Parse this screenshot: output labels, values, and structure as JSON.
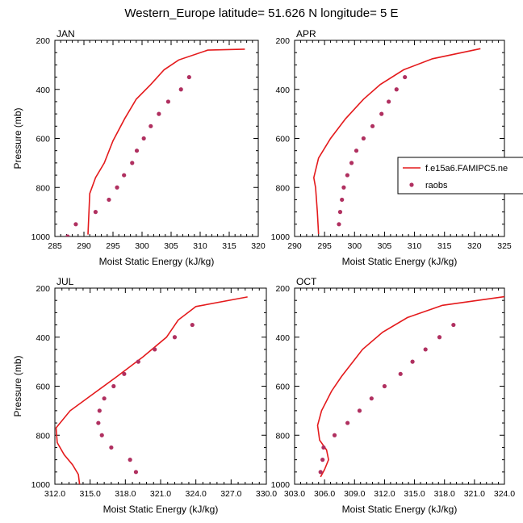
{
  "title": "Western_Europe  latitude= 51.626 N longitude= 5 E",
  "legend": {
    "entries": [
      {
        "label": "f.e15a6.FAMIPC5.ne",
        "kind": "line",
        "color": "#e41a1c"
      },
      {
        "label": "raobs",
        "kind": "marker",
        "color": "#b03060"
      }
    ],
    "placement": "right of APR panel"
  },
  "colors": {
    "model_line": "#e41a1c",
    "raobs_marker": "#b03060"
  },
  "chart_data": [
    {
      "type": "line",
      "panel_label": "JAN",
      "xlabel": "Moist Static Energy (kJ/kg)",
      "ylabel": "Pressure (mb)",
      "xlim": [
        285,
        320
      ],
      "ylim": [
        1000,
        200
      ],
      "y_inverted": true,
      "xticks": [
        285,
        290,
        295,
        300,
        305,
        310,
        315,
        320
      ],
      "xtick_labels": [
        "285",
        "290",
        "295",
        "300",
        "305",
        "310",
        "315",
        "320"
      ],
      "yticks": [
        200,
        400,
        600,
        800,
        1000
      ],
      "ytick_labels": [
        "200",
        "400",
        "600",
        "800",
        "1000"
      ],
      "series": [
        {
          "kind": "line",
          "x": [
            290.7,
            291.0,
            292.0,
            293.5,
            295.0,
            297.0,
            299.0,
            301.5,
            303.8,
            306.3,
            311.3,
            317.7
          ],
          "y": [
            992,
            825,
            760,
            700,
            610,
            520,
            440,
            380,
            320,
            280,
            240,
            236
          ]
        },
        {
          "kind": "scatter",
          "x": [
            287.2,
            288.6,
            292.0,
            294.3,
            295.7,
            296.9,
            298.3,
            299.1,
            300.3,
            301.5,
            302.9,
            304.5,
            306.7,
            308.1
          ],
          "y": [
            1000,
            950,
            900,
            850,
            800,
            750,
            700,
            650,
            600,
            550,
            500,
            450,
            400,
            350
          ]
        }
      ]
    },
    {
      "type": "line",
      "panel_label": "APR",
      "xlabel": "Moist Static Energy (kJ/kg)",
      "ylabel": "",
      "xlim": [
        290,
        325
      ],
      "ylim": [
        1000,
        200
      ],
      "y_inverted": true,
      "xticks": [
        290,
        295,
        300,
        305,
        310,
        315,
        320,
        325
      ],
      "xtick_labels": [
        "290",
        "295",
        "300",
        "305",
        "310",
        "315",
        "320",
        "325"
      ],
      "yticks": [
        200,
        400,
        600,
        800,
        1000
      ],
      "ytick_labels": [
        "200",
        "400",
        "600",
        "800",
        "1000"
      ],
      "series": [
        {
          "kind": "line",
          "x": [
            294.0,
            293.8,
            293.5,
            293.2,
            294.0,
            296.0,
            298.5,
            301.5,
            304.3,
            308.2,
            313.0,
            321.0
          ],
          "y": [
            990,
            900,
            800,
            760,
            680,
            600,
            520,
            440,
            380,
            320,
            275,
            234
          ]
        },
        {
          "kind": "scatter",
          "x": [
            297.4,
            297.6,
            297.9,
            298.2,
            298.8,
            299.5,
            300.3,
            301.5,
            303.0,
            304.5,
            305.7,
            307.0,
            308.4
          ],
          "y": [
            950,
            900,
            850,
            800,
            750,
            700,
            650,
            600,
            550,
            500,
            450,
            400,
            350
          ]
        }
      ]
    },
    {
      "type": "line",
      "panel_label": "JUL",
      "xlabel": "Moist Static Energy (kJ/kg)",
      "ylabel": "Pressure (mb)",
      "xlim": [
        312,
        330
      ],
      "ylim": [
        1000,
        200
      ],
      "y_inverted": true,
      "xticks": [
        312,
        315,
        318,
        321,
        324,
        327,
        330
      ],
      "xtick_labels": [
        "312.0",
        "315.0",
        "318.0",
        "321.0",
        "324.0",
        "327.0",
        "330.0"
      ],
      "yticks": [
        200,
        400,
        600,
        800,
        1000
      ],
      "ytick_labels": [
        "200",
        "400",
        "600",
        "800",
        "1000"
      ],
      "series": [
        {
          "kind": "line",
          "x": [
            314.1,
            314.0,
            313.5,
            312.8,
            312.2,
            312.1,
            313.3,
            315.3,
            317.3,
            319.5,
            321.5,
            322.5,
            324.0,
            328.4
          ],
          "y": [
            1000,
            960,
            920,
            880,
            830,
            770,
            700,
            630,
            560,
            480,
            400,
            330,
            275,
            236
          ]
        },
        {
          "kind": "scatter",
          "x": [
            318.9,
            318.4,
            316.8,
            316.0,
            315.7,
            315.8,
            316.2,
            317.0,
            317.9,
            319.1,
            320.5,
            322.2,
            323.7
          ],
          "y": [
            950,
            900,
            850,
            800,
            750,
            700,
            650,
            600,
            550,
            500,
            450,
            400,
            350
          ]
        }
      ]
    },
    {
      "type": "line",
      "panel_label": "OCT",
      "xlabel": "Moist Static Energy (kJ/kg)",
      "ylabel": "",
      "xlim": [
        303,
        324
      ],
      "ylim": [
        1000,
        200
      ],
      "y_inverted": true,
      "xticks": [
        303,
        306,
        309,
        312,
        315,
        318,
        321,
        324
      ],
      "xtick_labels": [
        "303.0",
        "306.0",
        "309.0",
        "312.0",
        "315.0",
        "318.0",
        "321.0",
        "324.0"
      ],
      "yticks": [
        200,
        400,
        600,
        800,
        1000
      ],
      "ytick_labels": [
        "200",
        "400",
        "600",
        "800",
        "1000"
      ],
      "series": [
        {
          "kind": "line",
          "x": [
            305.6,
            306.0,
            306.4,
            306.2,
            305.5,
            305.3,
            305.7,
            306.7,
            307.7,
            309.8,
            311.8,
            314.3,
            317.8,
            324.0
          ],
          "y": [
            970,
            940,
            900,
            860,
            820,
            760,
            700,
            620,
            560,
            450,
            380,
            320,
            270,
            235
          ]
        },
        {
          "kind": "scatter",
          "x": [
            305.6,
            305.8,
            305.9,
            307.0,
            308.3,
            309.5,
            310.7,
            312.0,
            313.6,
            314.8,
            316.1,
            317.5,
            318.9
          ],
          "y": [
            950,
            900,
            850,
            800,
            750,
            700,
            650,
            600,
            550,
            500,
            450,
            400,
            350
          ]
        }
      ]
    }
  ]
}
